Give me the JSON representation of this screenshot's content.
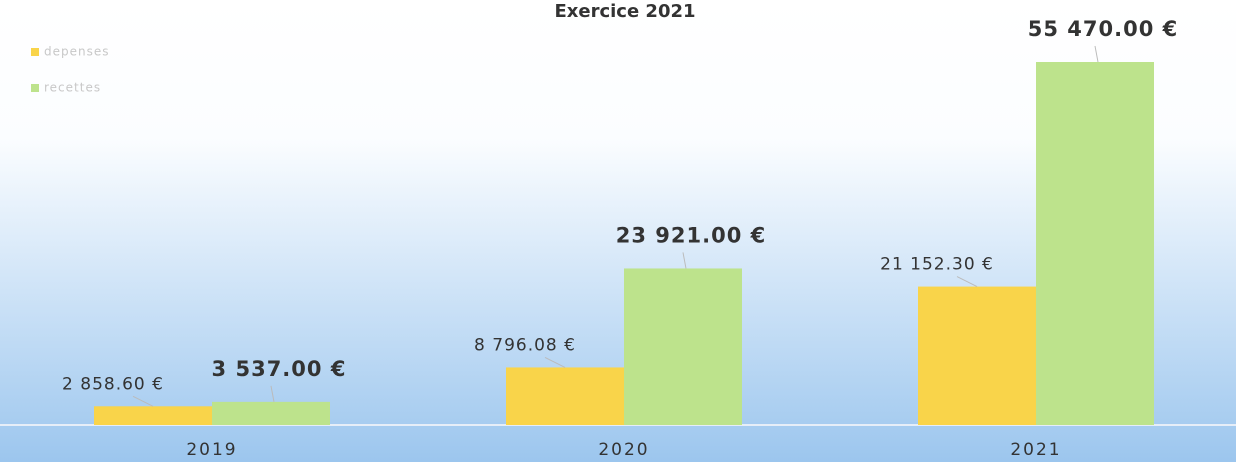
{
  "chart_data": {
    "type": "bar",
    "title": "Exercice 2021",
    "categories": [
      "2019",
      "2020",
      "2021"
    ],
    "series": [
      {
        "name": "depenses",
        "color": "#f9d44a",
        "values": [
          2858.6,
          8796.08,
          21152.3
        ],
        "value_labels": [
          "2 858.60 €",
          "8 796.08 €",
          "21 152.30 €"
        ]
      },
      {
        "name": "recettes",
        "color": "#bde38c",
        "values": [
          3537,
          23921,
          55470
        ],
        "value_labels": [
          "3 537.00 €",
          "23 921.00 €",
          "55 470.00 €"
        ]
      }
    ],
    "legend": "top-left"
  }
}
